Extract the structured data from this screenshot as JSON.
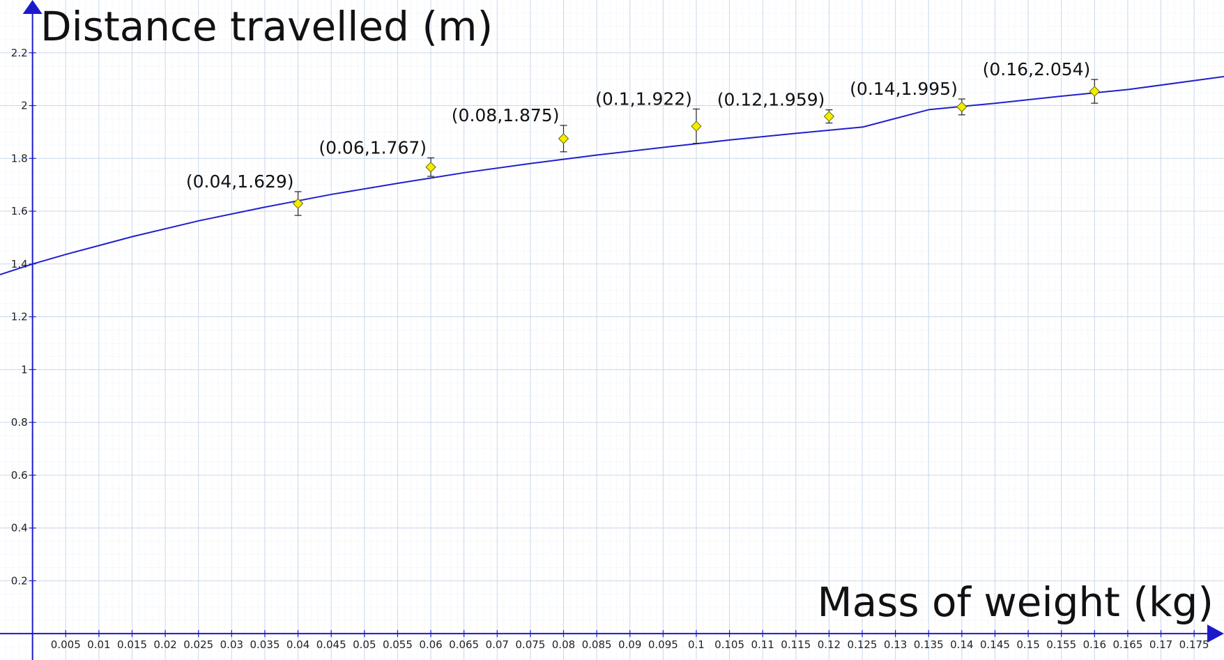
{
  "chart_data": {
    "type": "scatter",
    "ylabel": "Distance travelled (m)",
    "xlabel": "Mass of weight (kg)",
    "xlim": [
      -0.0049,
      0.1795
    ],
    "ylim": [
      -0.1,
      2.4
    ],
    "grid": true,
    "x_major_ticks": [
      "0.005",
      "0.01",
      "0.015",
      "0.02",
      "0.025",
      "0.03",
      "0.035",
      "0.04",
      "0.045",
      "0.05",
      "0.055",
      "0.06",
      "0.065",
      "0.07",
      "0.075",
      "0.08",
      "0.085",
      "0.09",
      "0.095",
      "0.1",
      "0.105",
      "0.11",
      "0.115",
      "0.12",
      "0.125",
      "0.13",
      "0.135",
      "0.14",
      "0.145",
      "0.15",
      "0.155",
      "0.16",
      "0.165",
      "0.17",
      "0.175"
    ],
    "y_major_ticks": [
      "0.2",
      "0.4",
      "0.6",
      "0.8",
      "1",
      "1.2",
      "1.4",
      "1.6",
      "1.8",
      "2",
      "2.2"
    ],
    "points": [
      {
        "x": 0.04,
        "y": 1.629,
        "err": 0.045,
        "label": "(0.04,1.629)"
      },
      {
        "x": 0.06,
        "y": 1.767,
        "err": 0.035,
        "label": "(0.06,1.767)"
      },
      {
        "x": 0.08,
        "y": 1.875,
        "err": 0.05,
        "label": "(0.08,1.875)"
      },
      {
        "x": 0.1,
        "y": 1.922,
        "err": 0.065,
        "label": "(0.1,1.922)"
      },
      {
        "x": 0.12,
        "y": 1.959,
        "err": 0.025,
        "label": "(0.12,1.959)"
      },
      {
        "x": 0.14,
        "y": 1.995,
        "err": 0.03,
        "label": "(0.14,1.995)"
      },
      {
        "x": 0.16,
        "y": 2.054,
        "err": 0.045,
        "label": "(0.16,2.054)"
      }
    ],
    "fit_curve": {
      "x": [
        -0.0049,
        0,
        0.0051,
        0.0151,
        0.0251,
        0.0351,
        0.0451,
        0.0551,
        0.0651,
        0.0751,
        0.0851,
        0.0951,
        0.1051,
        0.1151,
        0.1251,
        0.1351,
        0.1451,
        0.1551,
        0.1651,
        0.1795
      ],
      "y": [
        1.36,
        1.4,
        1.437,
        1.504,
        1.564,
        1.616,
        1.664,
        1.706,
        1.746,
        1.781,
        1.813,
        1.842,
        1.87,
        1.895,
        1.919,
        1.985,
        2.009,
        2.036,
        2.061,
        2.11
      ]
    },
    "colors": {
      "curve": "#1f1fcc",
      "axis": "#1a1acc",
      "marker_fill": "#f2ec00",
      "marker_stroke": "#666600",
      "grid_major": "#c9d7ea",
      "grid_minor": "#e4ebf5"
    }
  }
}
